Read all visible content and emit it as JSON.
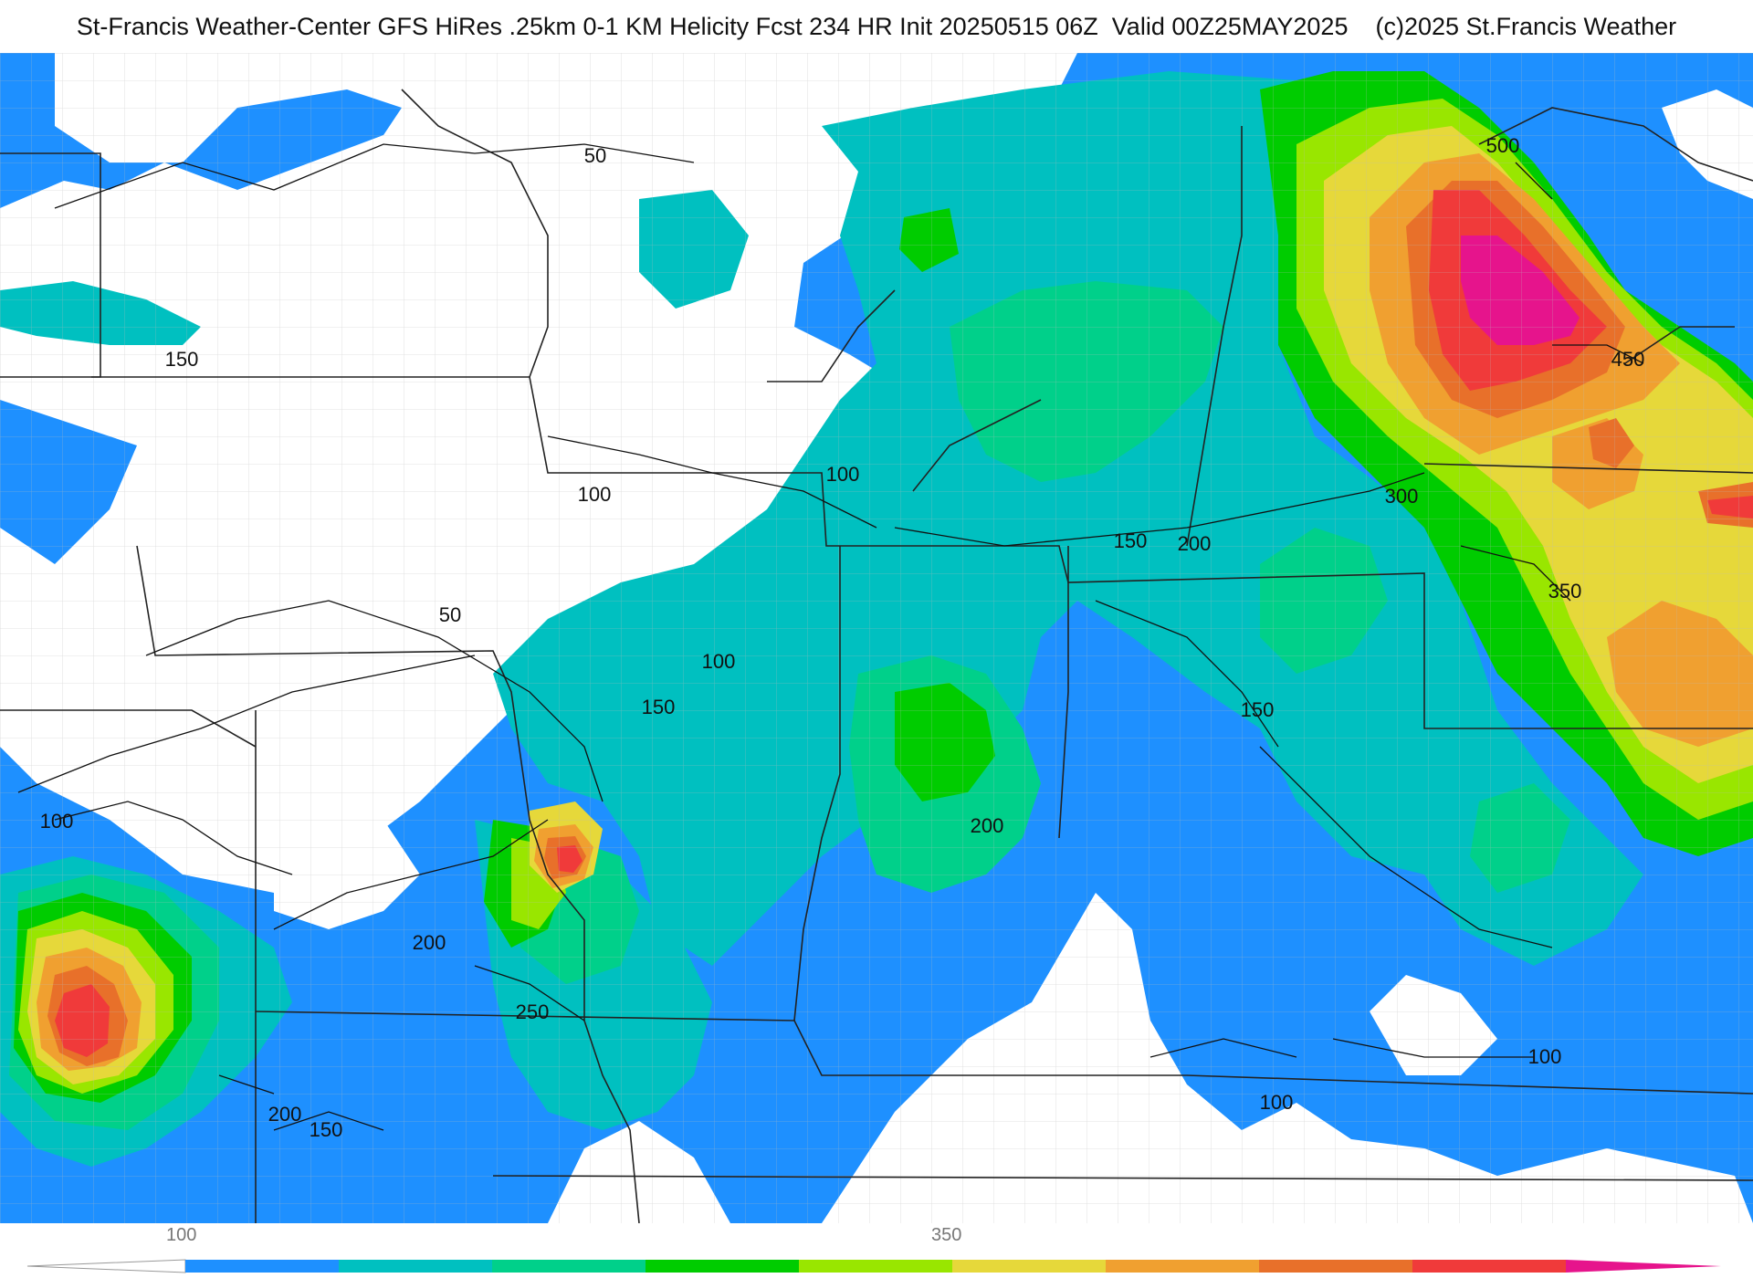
{
  "header": {
    "title": "St-Francis Weather-Center GFS HiRes .25km 0-1 KM Helicity Fcst 234 HR Init 20250515 06Z  Valid 00Z25MAY2025    (c)2025 St.Francis Weather"
  },
  "map": {
    "variable": "0-1 KM Helicity",
    "contour_labels": [
      "50",
      "50",
      "100",
      "100",
      "100",
      "100",
      "100",
      "100",
      "100",
      "150",
      "150",
      "150",
      "150",
      "150",
      "150",
      "200",
      "200",
      "200",
      "200",
      "250",
      "300",
      "350",
      "450",
      "500"
    ]
  },
  "legend": {
    "tick_labels": [
      "100",
      "350"
    ],
    "colors": [
      "#ffffff",
      "#1e90ff",
      "#00c0c0",
      "#00d08a",
      "#00cc00",
      "#99e600",
      "#e6d83a",
      "#f0a030",
      "#e8702a",
      "#f03a3a",
      "#e6148c"
    ]
  }
}
